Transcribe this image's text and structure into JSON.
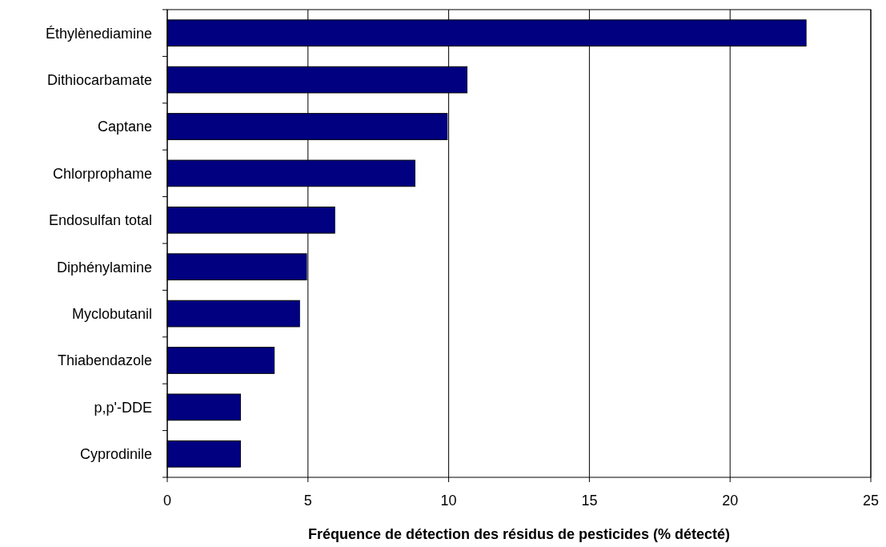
{
  "chart_data": {
    "type": "bar",
    "orientation": "horizontal",
    "categories": [
      "Éthylènediamine",
      "Dithiocarbamate",
      "Captane",
      "Chlorprophame",
      "Endosulfan total",
      "Diphénylamine",
      "Myclobutanil",
      "Thiabendazole",
      "p,p'-DDE",
      "Cyprodinile"
    ],
    "values": [
      22.7,
      10.65,
      9.95,
      8.8,
      5.95,
      4.95,
      4.7,
      3.8,
      2.6,
      2.6
    ],
    "color": "#000080",
    "xlabel": "Fréquence de détection des résidus de pesticides (% détecté)",
    "xlim": [
      0,
      25
    ],
    "xticks": [
      0,
      5,
      10,
      15,
      20,
      25
    ],
    "grid": "x"
  }
}
